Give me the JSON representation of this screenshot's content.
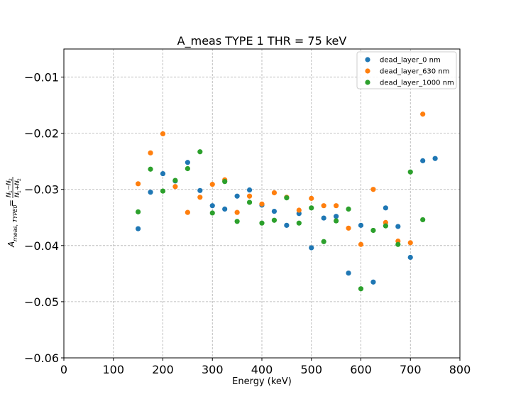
{
  "chart_data": {
    "type": "scatter",
    "title": "A_meas TYPE 1 THR = 75 keV",
    "xlabel": "Energy (keV)",
    "ylabel": "A_meas,TYPE0 = (N1 − N2)/(N1 + N2)",
    "xlim": [
      0,
      800
    ],
    "ylim": [
      -0.06,
      -0.005
    ],
    "xticks": [
      0,
      100,
      200,
      300,
      400,
      500,
      600,
      700,
      800
    ],
    "xtick_labels": [
      "0",
      "100",
      "200",
      "300",
      "400",
      "500",
      "600",
      "700",
      "800"
    ],
    "yticks": [
      -0.06,
      -0.05,
      -0.04,
      -0.03,
      -0.02,
      -0.01
    ],
    "ytick_labels": [
      "−0.06",
      "−0.05",
      "−0.04",
      "−0.03",
      "−0.02",
      "−0.01"
    ],
    "grid": true,
    "legend_position": "top-right",
    "series": [
      {
        "name": "dead_layer_0 nm",
        "color": "#1f77b4",
        "x": [
          150,
          175,
          200,
          225,
          250,
          275,
          300,
          325,
          350,
          375,
          400,
          425,
          450,
          475,
          500,
          525,
          550,
          575,
          600,
          625,
          650,
          675,
          700,
          725,
          750
        ],
        "y": [
          -0.037,
          -0.0305,
          -0.0272,
          -0.0285,
          -0.0252,
          -0.0302,
          -0.0329,
          -0.0335,
          -0.0312,
          -0.0301,
          -0.0328,
          -0.0339,
          -0.0364,
          -0.0343,
          -0.0404,
          -0.0351,
          -0.0348,
          -0.0449,
          -0.0364,
          -0.0465,
          -0.0333,
          -0.0366,
          -0.0421,
          -0.0249,
          -0.0245
        ]
      },
      {
        "name": "dead_layer_630 nm",
        "color": "#ff7f0e",
        "x": [
          150,
          175,
          200,
          225,
          250,
          275,
          300,
          325,
          350,
          375,
          400,
          425,
          450,
          475,
          500,
          525,
          550,
          575,
          600,
          625,
          650,
          675,
          700,
          725
        ],
        "y": [
          -0.029,
          -0.0235,
          -0.0201,
          -0.0295,
          -0.0341,
          -0.0314,
          -0.0291,
          -0.0283,
          -0.0341,
          -0.0312,
          -0.0326,
          -0.0306,
          -0.0314,
          -0.0337,
          -0.0316,
          -0.0329,
          -0.0329,
          -0.0369,
          -0.0398,
          -0.03,
          -0.0359,
          -0.0392,
          -0.0395,
          -0.0166
        ]
      },
      {
        "name": "dead_layer_1000 nm",
        "color": "#2ca02c",
        "x": [
          150,
          175,
          200,
          225,
          250,
          275,
          300,
          325,
          350,
          375,
          400,
          425,
          450,
          475,
          500,
          525,
          550,
          575,
          600,
          625,
          650,
          675,
          700,
          725
        ],
        "y": [
          -0.034,
          -0.0264,
          -0.0303,
          -0.0284,
          -0.0263,
          -0.0233,
          -0.0342,
          -0.0286,
          -0.0357,
          -0.0323,
          -0.036,
          -0.0355,
          -0.0315,
          -0.036,
          -0.0333,
          -0.0393,
          -0.0356,
          -0.0335,
          -0.0477,
          -0.0373,
          -0.0365,
          -0.0398,
          -0.0269,
          -0.0354
        ]
      }
    ]
  }
}
